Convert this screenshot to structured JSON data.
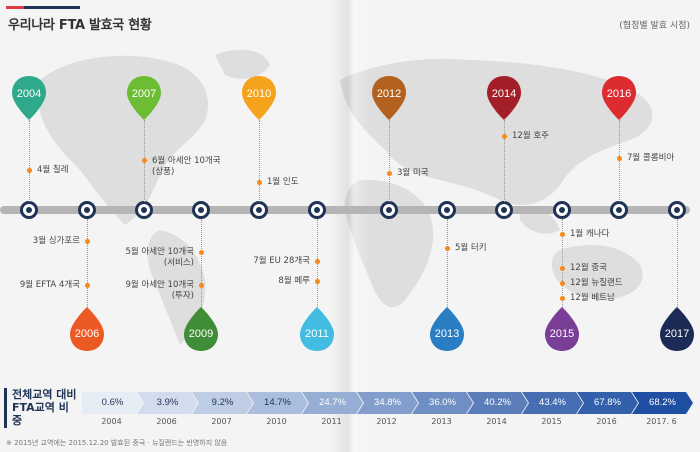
{
  "header": {
    "title": "우리나라 FTA 발효국 현황",
    "subtitle": "(협정별 발효 시점)",
    "accent_colors": [
      "#e03a3e",
      "#1f3356"
    ]
  },
  "timeline": {
    "bar_color": "#b5b5b5",
    "node_color": "#1f3356",
    "nodes": 12,
    "pins": [
      {
        "year": "2004",
        "color": "#2fa98c",
        "position": "top"
      },
      {
        "year": "2006",
        "color": "#ec5a24",
        "position": "bottom"
      },
      {
        "year": "2007",
        "color": "#6cbd33",
        "position": "top"
      },
      {
        "year": "2009",
        "color": "#3f8d36",
        "position": "bottom"
      },
      {
        "year": "2010",
        "color": "#f5a21c",
        "position": "top"
      },
      {
        "year": "2011",
        "color": "#42bce0",
        "position": "bottom"
      },
      {
        "year": "2012",
        "color": "#b2621e",
        "position": "top"
      },
      {
        "year": "2013",
        "color": "#2a7dc2",
        "position": "bottom"
      },
      {
        "year": "2014",
        "color": "#a31f28",
        "position": "top"
      },
      {
        "year": "2015",
        "color": "#7a3e96",
        "position": "bottom"
      },
      {
        "year": "2016",
        "color": "#dc2c32",
        "position": "top"
      },
      {
        "year": "2017",
        "color": "#1b2b55",
        "position": "bottom"
      }
    ],
    "events_top": [
      {
        "text": "4월 칠레"
      },
      {
        "text": "6월 아세안 10개국\n(상품)"
      },
      {
        "text": "1월 인도"
      },
      {
        "text": "3월 미국"
      },
      {
        "text": "12월 호주"
      },
      {
        "text": "7월 콜롬비아"
      }
    ],
    "events_bottom": [
      {
        "text": "3월 싱가포르"
      },
      {
        "text": "9월 EFTA 4개국"
      },
      {
        "text": "5월 아세안 10개국\n(서비스)"
      },
      {
        "text": "9월 아세안 10개국\n(투자)"
      },
      {
        "text": "7월 EU 28개국"
      },
      {
        "text": "8월 페루"
      },
      {
        "text": "5월 터키"
      },
      {
        "text": "1월 캐나다"
      },
      {
        "text": "12월 중국"
      },
      {
        "text": "12월 뉴질랜드"
      },
      {
        "text": "12월 베트남"
      }
    ]
  },
  "bottom": {
    "label_line1": "전체교역 대비",
    "label_line2": "FTA교역 비중",
    "values": [
      "0.6%",
      "3.9%",
      "9.2%",
      "14.7%",
      "24.7%",
      "34.8%",
      "36.0%",
      "40.2%",
      "43.4%",
      "67.8%",
      "68.2%"
    ],
    "years": [
      "2004",
      "2006",
      "2007",
      "2010",
      "2011",
      "2012",
      "2013",
      "2014",
      "2015",
      "2016",
      "2017. 6"
    ],
    "gradient_start": "#e6ecf4",
    "gradient_end": "#1f4fa3"
  },
  "footnote": "※ 2015년 교역에는 2015.12.20 발효된 중국 · 뉴질랜드는 반영하지 않음"
}
